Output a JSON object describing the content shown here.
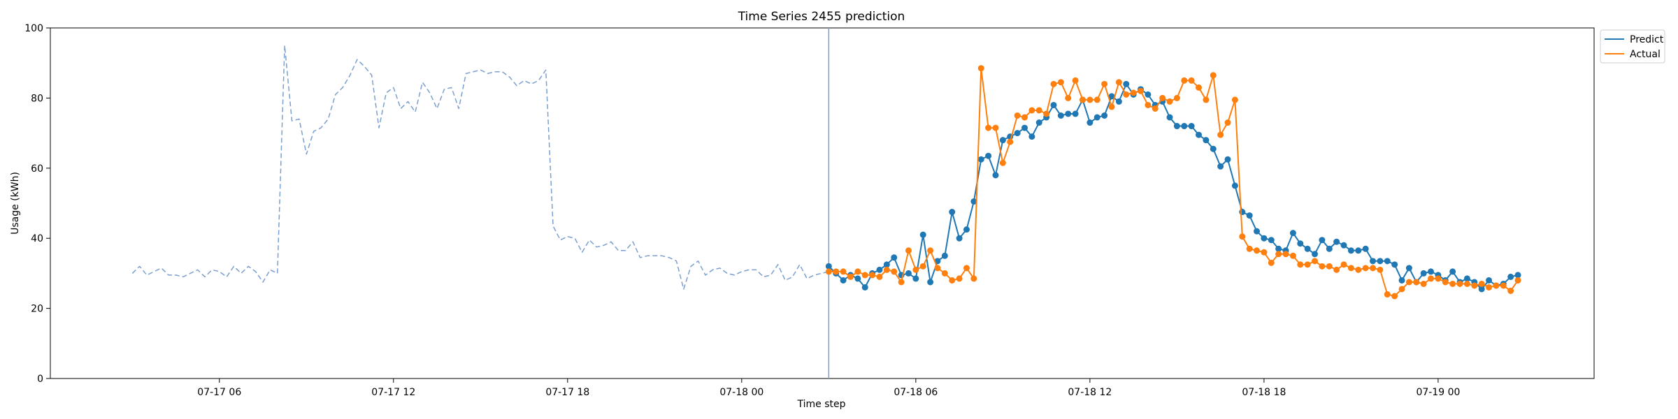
{
  "chart_data": {
    "type": "line",
    "title": "Time Series 2455 prediction",
    "xlabel": "Time step",
    "ylabel": "Usage (kWh)",
    "ylim": [
      0,
      100
    ],
    "yticks": [
      0,
      20,
      40,
      60,
      80,
      100
    ],
    "xlim": [
      -11.3,
      201.5
    ],
    "xticks": [
      {
        "label": "07-17 06",
        "x": 12
      },
      {
        "label": "07-17 12",
        "x": 36
      },
      {
        "label": "07-17 18",
        "x": 60
      },
      {
        "label": "07-18 00",
        "x": 84
      },
      {
        "label": "07-18 06",
        "x": 108
      },
      {
        "label": "07-18 12",
        "x": 132
      },
      {
        "label": "07-18 18",
        "x": 156
      },
      {
        "label": "07-19 00",
        "x": 180
      }
    ],
    "x_unit": "30-minute time steps, 07-17 00 = 0",
    "forecast_start": 96,
    "legend": {
      "position": "top-right outside",
      "entries": [
        "Predict",
        "Actual"
      ]
    },
    "colors": {
      "history": "#7b9fcf",
      "predict": "#1f77b4",
      "actual": "#ff7f0e",
      "divider": "#7b9fcf"
    },
    "series": [
      {
        "name": "History",
        "style": "dashed",
        "x_start": 0,
        "values": [
          30.0,
          32.0,
          29.5,
          30.5,
          31.5,
          29.5,
          29.5,
          29.0,
          30.0,
          31.0,
          29.0,
          31.0,
          30.5,
          29.0,
          32.0,
          30.0,
          32.0,
          30.5,
          27.5,
          31.0,
          30.0,
          95.0,
          73.5,
          74.0,
          64.0,
          70.5,
          71.5,
          74.0,
          81.0,
          83.0,
          86.5,
          91.0,
          89.0,
          86.5,
          71.5,
          81.5,
          83.0,
          77.0,
          79.0,
          76.0,
          84.5,
          81.5,
          77.0,
          82.5,
          83.0,
          77.0,
          87.0,
          87.5,
          88.0,
          87.0,
          87.5,
          87.5,
          86.0,
          83.5,
          85.0,
          84.0,
          85.0,
          88.0,
          43.5,
          39.5,
          40.5,
          40.0,
          36.0,
          39.5,
          37.5,
          38.0,
          39.0,
          36.5,
          36.5,
          39.0,
          34.5,
          35.0,
          35.0,
          35.0,
          34.5,
          33.5,
          25.5,
          32.0,
          33.5,
          29.5,
          31.0,
          31.5,
          30.0,
          29.5,
          30.5,
          31.0,
          31.0,
          29.0,
          29.5,
          32.5,
          28.0,
          29.0,
          32.5,
          28.5,
          29.5,
          30.0,
          30.5
        ]
      },
      {
        "name": "Predict",
        "style": "solid-markers",
        "x_start": 96,
        "values": [
          32.0,
          30.0,
          28.0,
          29.5,
          28.5,
          26.0,
          30.0,
          31.0,
          32.5,
          34.5,
          29.5,
          30.0,
          28.5,
          41.0,
          27.5,
          33.5,
          35.0,
          47.5,
          40.0,
          42.5,
          50.5,
          62.5,
          63.5,
          58.0,
          68.0,
          69.0,
          70.0,
          71.5,
          69.0,
          73.0,
          74.5,
          78.0,
          75.0,
          75.5,
          75.5,
          79.5,
          73.0,
          74.5,
          75.0,
          80.5,
          79.0,
          84.0,
          81.0,
          82.5,
          81.0,
          78.0,
          79.0,
          74.5,
          72.0,
          72.0,
          72.0,
          69.5,
          68.0,
          65.5,
          60.5,
          62.5,
          55.0,
          47.5,
          46.5,
          42.0,
          40.0,
          39.5,
          37.0,
          36.5,
          41.5,
          38.5,
          37.0,
          35.5,
          39.5,
          37.0,
          39.0,
          38.0,
          36.5,
          36.5,
          37.0,
          33.5,
          33.5,
          33.5,
          32.5,
          28.0,
          31.5,
          27.5,
          30.0,
          30.5,
          29.5,
          28.0,
          30.5,
          27.5,
          28.5,
          27.5,
          25.5,
          28.0,
          26.5,
          27.0,
          29.0,
          29.5
        ]
      },
      {
        "name": "Actual",
        "style": "solid-markers",
        "x_start": 96,
        "values": [
          30.5,
          30.5,
          30.5,
          29.0,
          30.5,
          29.5,
          29.5,
          29.0,
          31.0,
          30.5,
          27.5,
          36.5,
          31.0,
          32.0,
          36.5,
          31.5,
          30.0,
          28.0,
          28.5,
          31.5,
          28.5,
          88.5,
          71.5,
          71.5,
          61.5,
          67.5,
          75.0,
          74.5,
          76.5,
          76.5,
          75.5,
          84.0,
          84.5,
          80.0,
          85.0,
          79.5,
          79.5,
          79.5,
          84.0,
          77.5,
          84.5,
          81.0,
          81.5,
          82.0,
          78.0,
          77.0,
          80.0,
          79.0,
          80.0,
          85.0,
          85.0,
          83.0,
          79.5,
          86.5,
          69.5,
          73.0,
          79.5,
          40.5,
          37.0,
          36.5,
          36.0,
          33.0,
          35.5,
          35.5,
          35.0,
          32.5,
          32.5,
          33.5,
          32.0,
          32.0,
          31.0,
          32.5,
          31.5,
          31.0,
          31.5,
          31.5,
          31.0,
          24.0,
          23.5,
          25.5,
          27.5,
          27.5,
          27.0,
          28.5,
          28.5,
          27.5,
          27.0,
          27.0,
          27.0,
          26.5,
          27.0,
          26.0,
          26.5,
          26.5,
          25.0,
          28.0
        ]
      }
    ]
  }
}
